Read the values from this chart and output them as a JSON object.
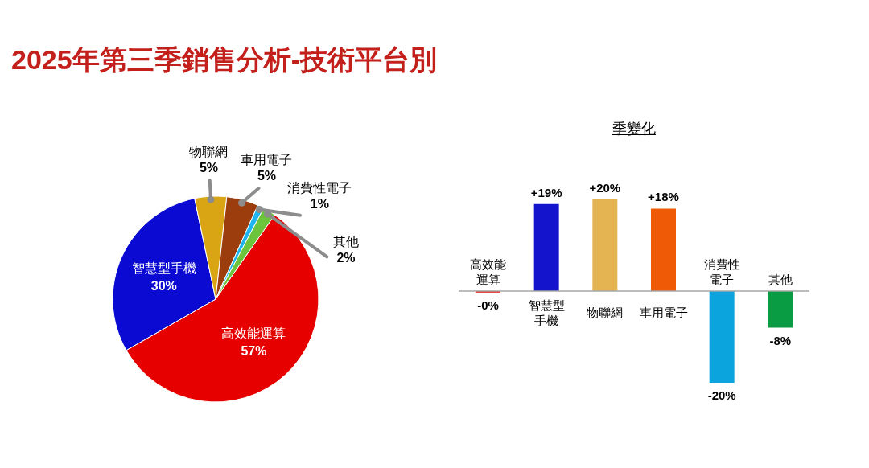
{
  "chart_data": [
    {
      "type": "pie",
      "title": "2025年第三季銷售分析-技術平台別",
      "categories": [
        "高效能運算",
        "智慧型手機",
        "物聯網",
        "車用電子",
        "消費性電子",
        "其他"
      ],
      "values": [
        57,
        30,
        5,
        5,
        1,
        2
      ],
      "colors": [
        "#e60000",
        "#0a0ad2",
        "#d9a514",
        "#9c3d0d",
        "#1eb4f0",
        "#6cc33c"
      ],
      "value_labels": [
        "57%",
        "30%",
        "5%",
        "5%",
        "1%",
        "2%"
      ]
    },
    {
      "type": "bar",
      "title": "季變化",
      "categories": [
        "高效能運算",
        "智慧型手機",
        "物聯網",
        "車用電子",
        "消費性電子",
        "其他"
      ],
      "values": [
        -0.3,
        19,
        20,
        18,
        -20,
        -8
      ],
      "colors": [
        "#e00000",
        "#1414cc",
        "#e4b452",
        "#ee5a06",
        "#0ba4dc",
        "#0a9c42"
      ],
      "value_labels": [
        "-0%",
        "+19%",
        "+20%",
        "+18%",
        "-20%",
        "-8%"
      ],
      "ylim": [
        -20,
        20
      ],
      "tick_labels": "x"
    }
  ]
}
